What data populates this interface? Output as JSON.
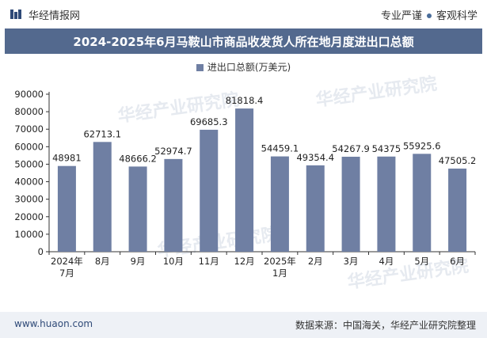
{
  "header": {
    "brand": "华经情报网",
    "tag1": "专业严谨",
    "tag2": "客观科学"
  },
  "footer": {
    "website": "www.huaon.com",
    "source": "数据来源：中国海关，华经产业研究院整理"
  },
  "watermark": "华经产业研究院",
  "colors": {
    "bar": "#6f7fa3",
    "titlebar": "#53698e"
  },
  "chart_data": {
    "type": "bar",
    "title": "2024-2025年6月马鞍山市商品收发货人所在地月度进出口总额",
    "categories": [
      "2024年\n7月",
      "8月",
      "9月",
      "10月",
      "11月",
      "12月",
      "2025年\n1月",
      "2月",
      "3月",
      "4月",
      "5月",
      "6月"
    ],
    "series": [
      {
        "name": "进出口总额(万美元)",
        "values": [
          48981,
          62713.1,
          48666.2,
          52974.7,
          69685.3,
          81818.4,
          54459.1,
          49354.4,
          54267.9,
          54375,
          55925.6,
          47505.2
        ]
      }
    ],
    "labels": [
      "48981",
      "62713.1",
      "48666.2",
      "52974.7",
      "69685.3",
      "81818.4",
      "54459.1",
      "49354.4",
      "54267.9",
      "54375",
      "55925.6",
      "47505.2"
    ],
    "yticks": [
      "0",
      "10000",
      "20000",
      "30000",
      "40000",
      "50000",
      "60000",
      "70000",
      "80000",
      "90000"
    ],
    "ylim": [
      0,
      90000
    ],
    "xlabel": "",
    "ylabel": "",
    "legend_position": "top-center"
  }
}
